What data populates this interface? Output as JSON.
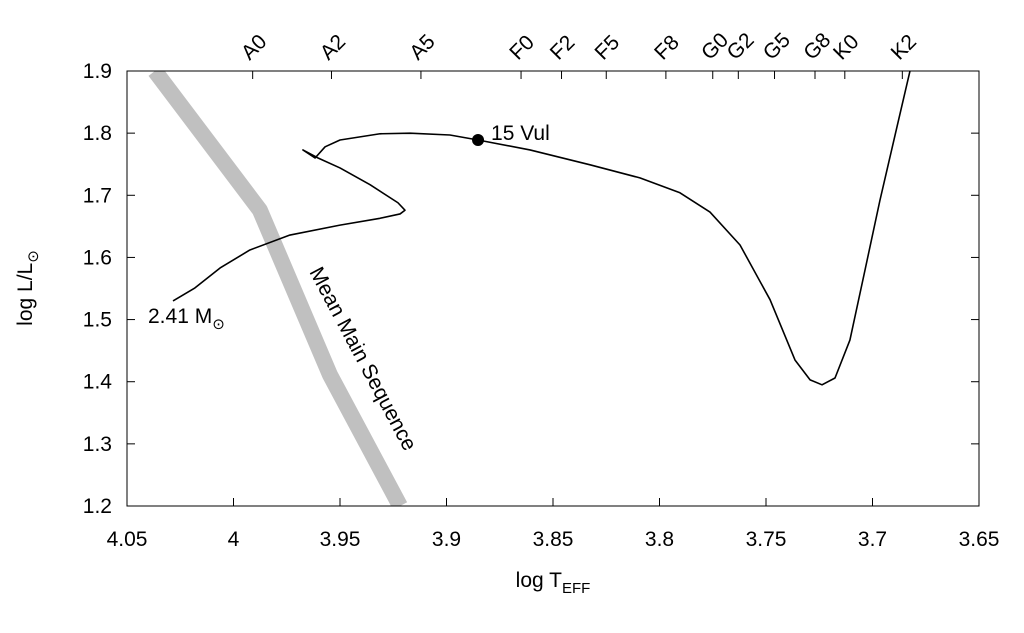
{
  "chart_data": {
    "type": "line",
    "xlabel": [
      "log T",
      "EFF"
    ],
    "ylabel": [
      "log L/L",
      "⊙"
    ],
    "xlim": [
      4.05,
      3.65
    ],
    "ylim": [
      1.2,
      1.9
    ],
    "xticks": [
      4.05,
      4,
      3.95,
      3.9,
      3.85,
      3.8,
      3.75,
      3.7,
      3.65
    ],
    "yticks": [
      1.2,
      1.3,
      1.4,
      1.5,
      1.6,
      1.7,
      1.8,
      1.9
    ],
    "top_ticks": [
      {
        "value": 3.991,
        "label": "A0"
      },
      {
        "value": 3.954,
        "label": "A2"
      },
      {
        "value": 3.912,
        "label": "A5"
      },
      {
        "value": 3.865,
        "label": "F0"
      },
      {
        "value": 3.846,
        "label": "F2"
      },
      {
        "value": 3.825,
        "label": "F5"
      },
      {
        "value": 3.797,
        "label": "F8"
      },
      {
        "value": 3.775,
        "label": "G0"
      },
      {
        "value": 3.763,
        "label": "G2"
      },
      {
        "value": 3.746,
        "label": "G5"
      },
      {
        "value": 3.727,
        "label": "G8"
      },
      {
        "value": 3.713,
        "label": "K0"
      },
      {
        "value": 3.686,
        "label": "K2"
      }
    ],
    "series": [
      {
        "name": "Mean Main Sequence",
        "color": "#c0c0c0",
        "x": [
          4.0369,
          3.9876,
          3.9547,
          3.9218
        ],
        "y": [
          1.9,
          1.676,
          1.411,
          1.2
        ]
      },
      {
        "name": [
          "2.41 M",
          "⊙"
        ],
        "color": "#000000",
        "x": [
          4.0284,
          4.0181,
          4.0063,
          3.9923,
          3.9735,
          3.95,
          3.9312,
          3.9218,
          3.9195,
          3.9228,
          3.9359,
          3.95,
          3.9603,
          3.9674,
          3.9617,
          3.957,
          3.95,
          3.9312,
          3.9171,
          3.8984,
          3.8852,
          3.8608,
          3.8326,
          3.8092,
          3.7904,
          3.7763,
          3.7622,
          3.7481,
          3.7364,
          3.7293,
          3.7237,
          3.7176,
          3.7106,
          3.7035,
          3.6965,
          3.6894,
          3.6824
        ],
        "y": [
          1.53,
          1.551,
          1.583,
          1.612,
          1.636,
          1.652,
          1.663,
          1.67,
          1.676,
          1.688,
          1.717,
          1.744,
          1.76,
          1.773,
          1.76,
          1.778,
          1.789,
          1.799,
          1.8,
          1.797,
          1.789,
          1.773,
          1.749,
          1.728,
          1.704,
          1.673,
          1.62,
          1.532,
          1.435,
          1.403,
          1.395,
          1.406,
          1.467,
          1.58,
          1.692,
          1.797,
          1.9
        ]
      }
    ],
    "points": [
      {
        "name": "15 Vul",
        "x": 3.8852,
        "y": 1.789,
        "color": "#000000"
      }
    ]
  }
}
